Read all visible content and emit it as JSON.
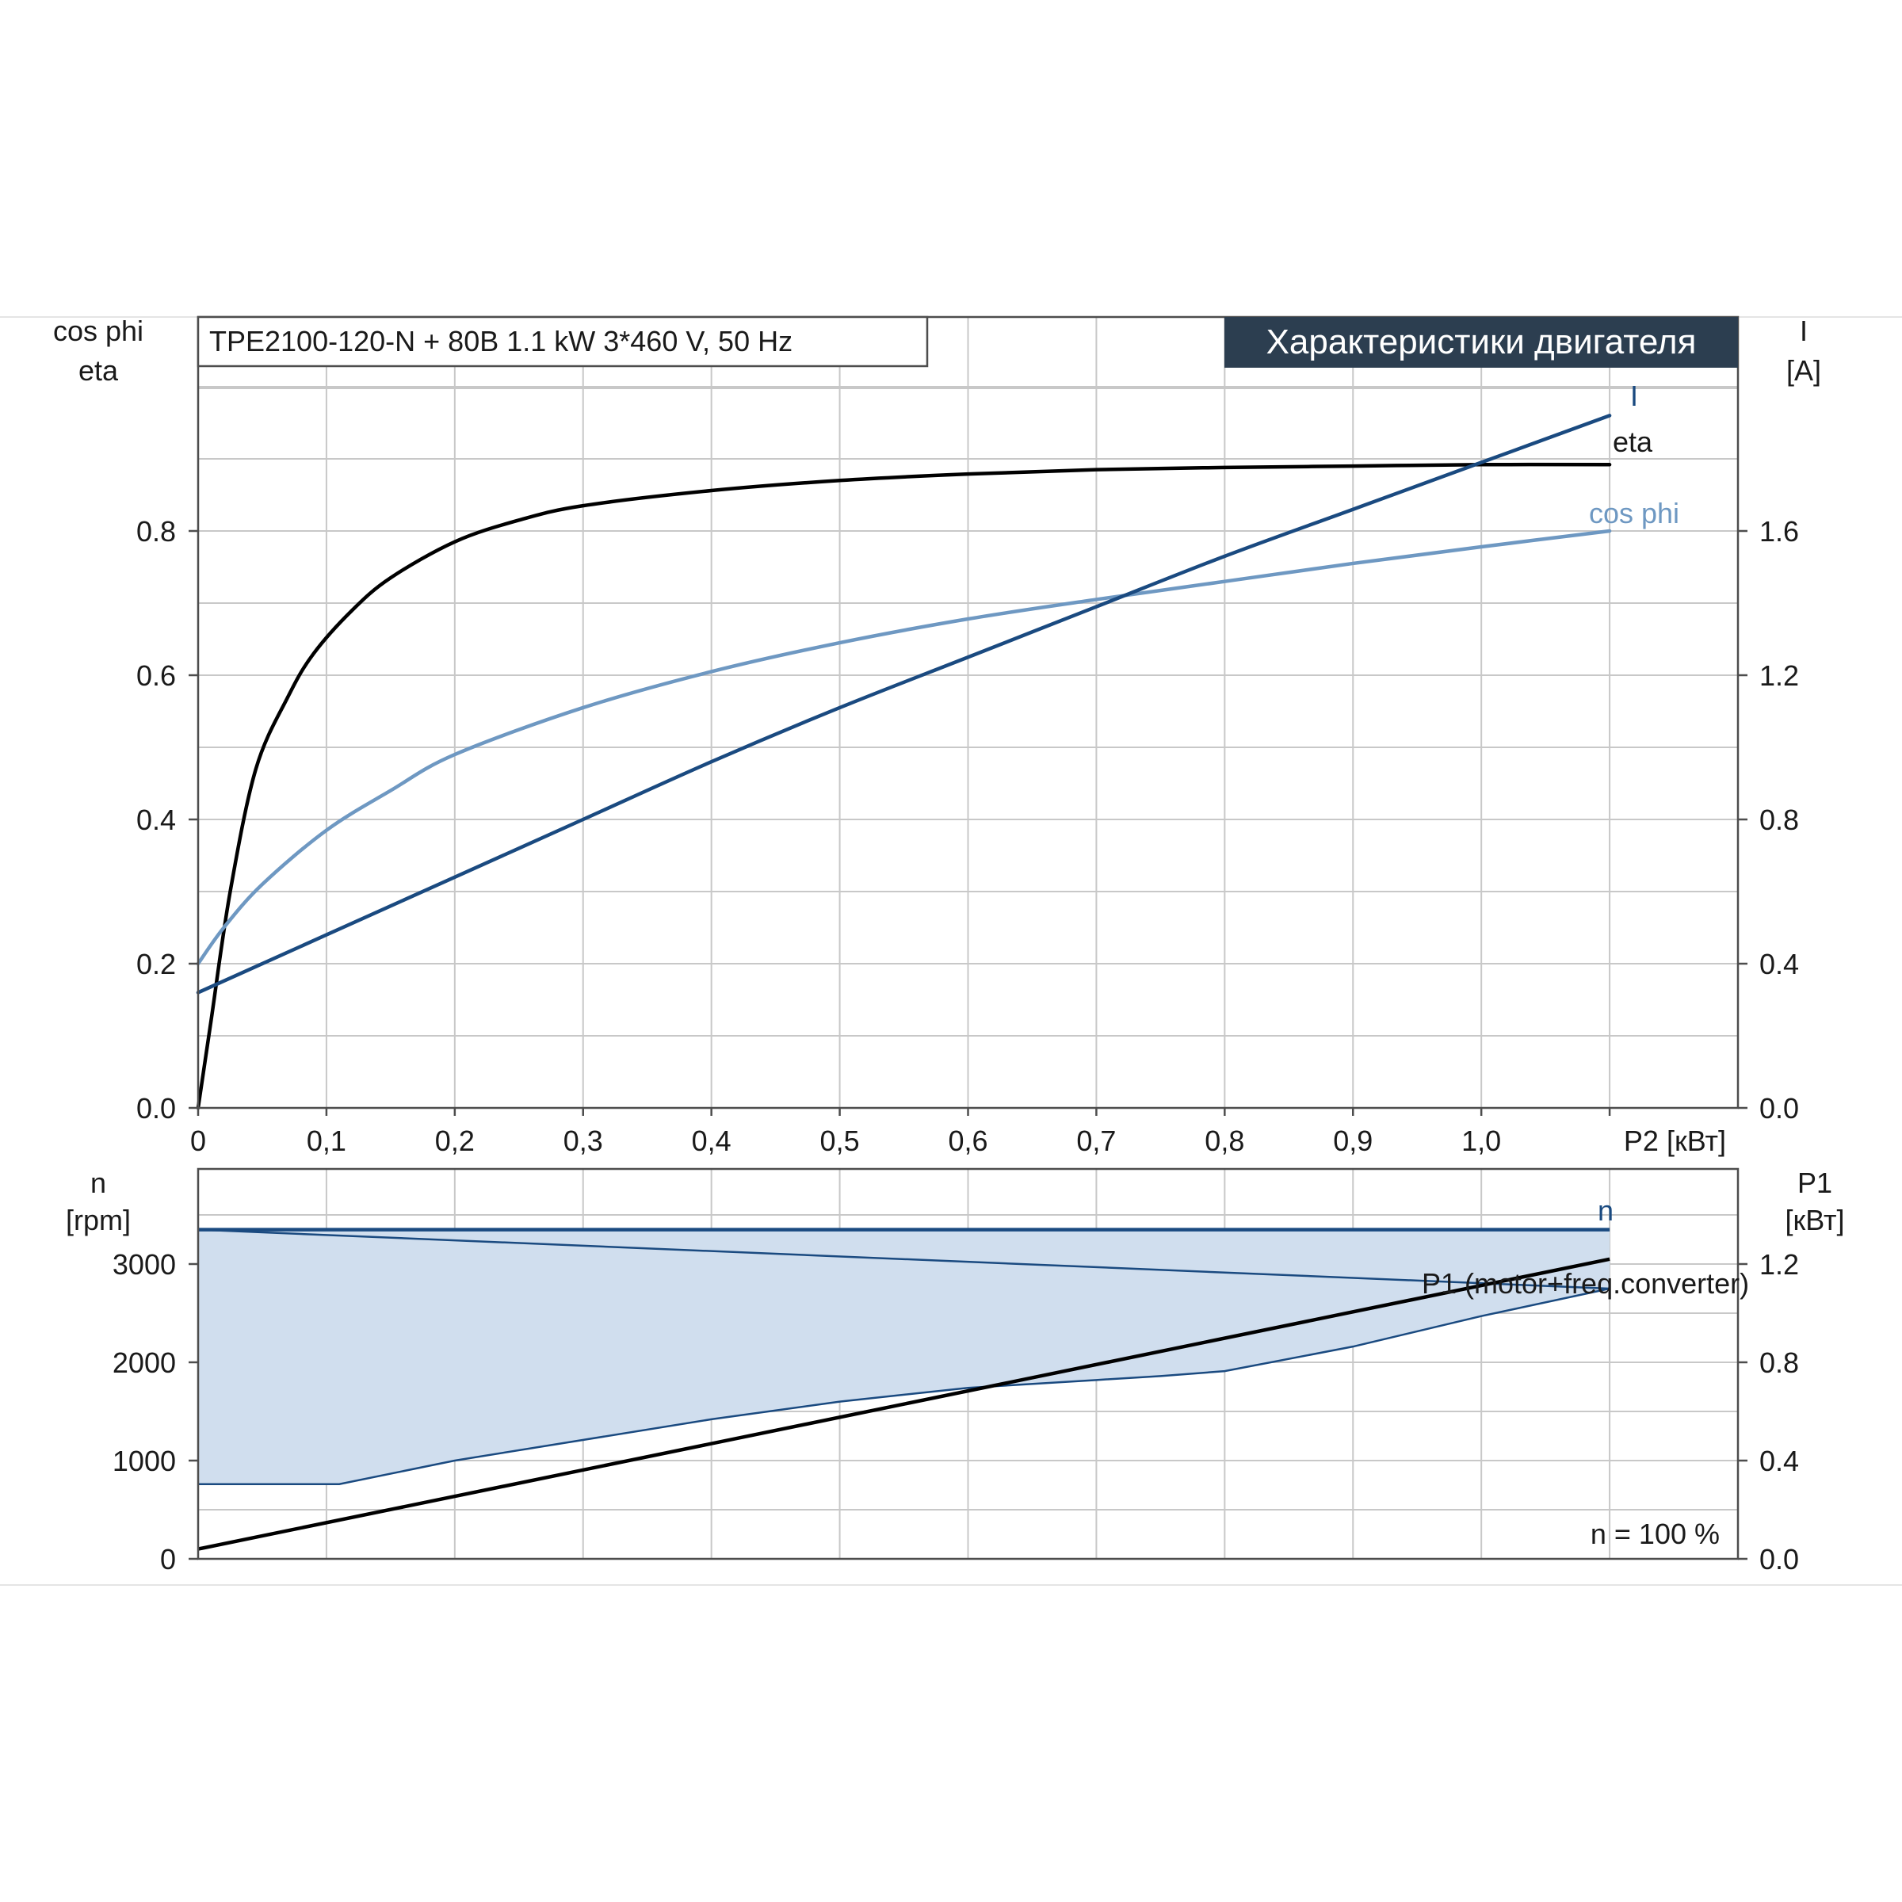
{
  "chart_data": [
    {
      "type": "line",
      "header": "TPE2100-120-N + 80B   1.1 kW   3*460 V, 50 Hz",
      "banner": "Характеристики двигателя",
      "x_axis": {
        "label": "P2 [кВт]",
        "ticks": [
          "0",
          "0,1",
          "0,2",
          "0,3",
          "0,4",
          "0,5",
          "0,6",
          "0,7",
          "0,8",
          "0,9",
          "1,0"
        ],
        "range": [
          0,
          1.2
        ]
      },
      "y_left": {
        "label_line1": "cos phi",
        "label_line2": "eta",
        "ticks": [
          "0.0",
          "0.2",
          "0.4",
          "0.6",
          "0.8"
        ],
        "range": [
          0,
          1.0
        ]
      },
      "y_right": {
        "label_line1": "I",
        "label_line2": "[A]",
        "ticks": [
          "0.0",
          "0.4",
          "0.8",
          "1.2",
          "1.6"
        ],
        "range": [
          0,
          2.0
        ]
      },
      "grid": true,
      "series": [
        {
          "name": "eta",
          "axis": "left",
          "color": "#000000",
          "points": [
            [
              0,
              0
            ],
            [
              0.01,
              0.12
            ],
            [
              0.025,
              0.3
            ],
            [
              0.045,
              0.47
            ],
            [
              0.07,
              0.57
            ],
            [
              0.09,
              0.63
            ],
            [
              0.12,
              0.69
            ],
            [
              0.15,
              0.735
            ],
            [
              0.2,
              0.785
            ],
            [
              0.25,
              0.815
            ],
            [
              0.3,
              0.835
            ],
            [
              0.4,
              0.856
            ],
            [
              0.5,
              0.87
            ],
            [
              0.6,
              0.879
            ],
            [
              0.7,
              0.885
            ],
            [
              0.8,
              0.888
            ],
            [
              0.9,
              0.89
            ],
            [
              1.0,
              0.892
            ],
            [
              1.1,
              0.892
            ]
          ]
        },
        {
          "name": "cos phi",
          "axis": "left",
          "color": "#6e98c2",
          "points": [
            [
              0,
              0.2
            ],
            [
              0.02,
              0.25
            ],
            [
              0.05,
              0.31
            ],
            [
              0.1,
              0.385
            ],
            [
              0.15,
              0.44
            ],
            [
              0.2,
              0.49
            ],
            [
              0.3,
              0.555
            ],
            [
              0.4,
              0.605
            ],
            [
              0.5,
              0.645
            ],
            [
              0.6,
              0.678
            ],
            [
              0.7,
              0.705
            ],
            [
              0.8,
              0.73
            ],
            [
              0.9,
              0.755
            ],
            [
              1.0,
              0.778
            ],
            [
              1.1,
              0.8
            ]
          ]
        },
        {
          "name": "I",
          "axis": "right",
          "color": "#1a4a80",
          "points": [
            [
              0,
              0.32
            ],
            [
              0.1,
              0.48
            ],
            [
              0.2,
              0.64
            ],
            [
              0.3,
              0.8
            ],
            [
              0.4,
              0.96
            ],
            [
              0.5,
              1.11
            ],
            [
              0.6,
              1.25
            ],
            [
              0.7,
              1.39
            ],
            [
              0.8,
              1.53
            ],
            [
              0.9,
              1.66
            ],
            [
              1.0,
              1.79
            ],
            [
              1.1,
              1.92
            ]
          ]
        }
      ]
    },
    {
      "type": "area",
      "x_range": [
        0,
        1.2
      ],
      "y_left": {
        "label_line1": "n",
        "label_line2": "[rpm]",
        "ticks": [
          "0",
          "1000",
          "2000",
          "3000"
        ],
        "range": [
          0,
          4000
        ]
      },
      "y_right": {
        "label_line1": "P1",
        "label_line2": "[кВт]",
        "ticks": [
          "0.0",
          "0.4",
          "0.8",
          "1.2"
        ],
        "range": [
          0,
          1.6
        ]
      },
      "annotation": "n = 100 %",
      "grid": true,
      "series": [
        {
          "name": "n",
          "axis": "left",
          "color": "#1a4a80",
          "points": [
            [
              0,
              3350
            ],
            [
              1.1,
              3350
            ]
          ]
        },
        {
          "name": "P1 (motor+freq.converter)",
          "axis": "right",
          "color": "#000000",
          "points": [
            [
              0,
              0.04
            ],
            [
              1.1,
              1.22
            ]
          ]
        }
      ],
      "range_area": {
        "color": "#d0deee",
        "upper": [
          [
            0,
            3350
          ],
          [
            1.1,
            3350
          ]
        ],
        "lower": [
          [
            0,
            760
          ],
          [
            0.11,
            760
          ],
          [
            0.2,
            1000
          ],
          [
            0.4,
            1420
          ],
          [
            0.5,
            1600
          ],
          [
            0.6,
            1740
          ],
          [
            0.7,
            1820
          ],
          [
            0.75,
            1860
          ],
          [
            0.8,
            1910
          ],
          [
            0.9,
            2160
          ],
          [
            1.0,
            2470
          ],
          [
            1.1,
            2750
          ]
        ]
      }
    }
  ]
}
